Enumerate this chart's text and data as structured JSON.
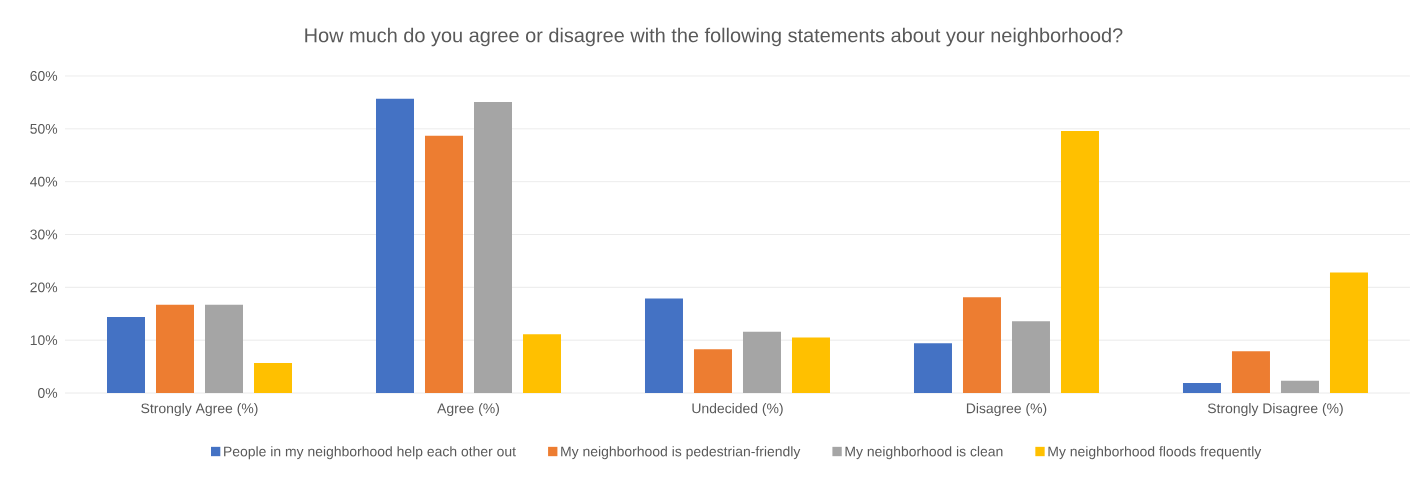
{
  "chart_data": {
    "type": "bar",
    "title": "How much do you agree or disagree with the following statements about your neighborhood?",
    "categories": [
      "Strongly Agree (%)",
      "Agree (%)",
      "Undecided (%)",
      "Disagree (%)",
      "Strongly Disagree (%)"
    ],
    "series": [
      {
        "name": "People in my neighborhood help each other out",
        "color": "#4472c4",
        "values": [
          14.4,
          55.7,
          17.9,
          9.4,
          1.9
        ]
      },
      {
        "name": "My neighborhood is pedestrian-friendly",
        "color": "#ed7d31",
        "values": [
          16.7,
          48.7,
          8.3,
          18.1,
          7.9
        ]
      },
      {
        "name": "My neighborhood is clean",
        "color": "#a5a5a5",
        "values": [
          16.7,
          55.1,
          11.6,
          13.6,
          2.3
        ]
      },
      {
        "name": "My neighborhood floods frequently",
        "color": "#ffc000",
        "values": [
          5.7,
          11.1,
          10.5,
          49.6,
          22.8
        ]
      }
    ],
    "ylim": [
      0,
      60
    ],
    "yticks": [
      {
        "value": 0,
        "label": "0%"
      },
      {
        "value": 10,
        "label": "10%"
      },
      {
        "value": 20,
        "label": "20%"
      },
      {
        "value": 30,
        "label": "30%"
      },
      {
        "value": 40,
        "label": "40%"
      },
      {
        "value": 50,
        "label": "50%"
      },
      {
        "value": 60,
        "label": "60%"
      }
    ],
    "grid": "y",
    "legend": "bottom"
  }
}
